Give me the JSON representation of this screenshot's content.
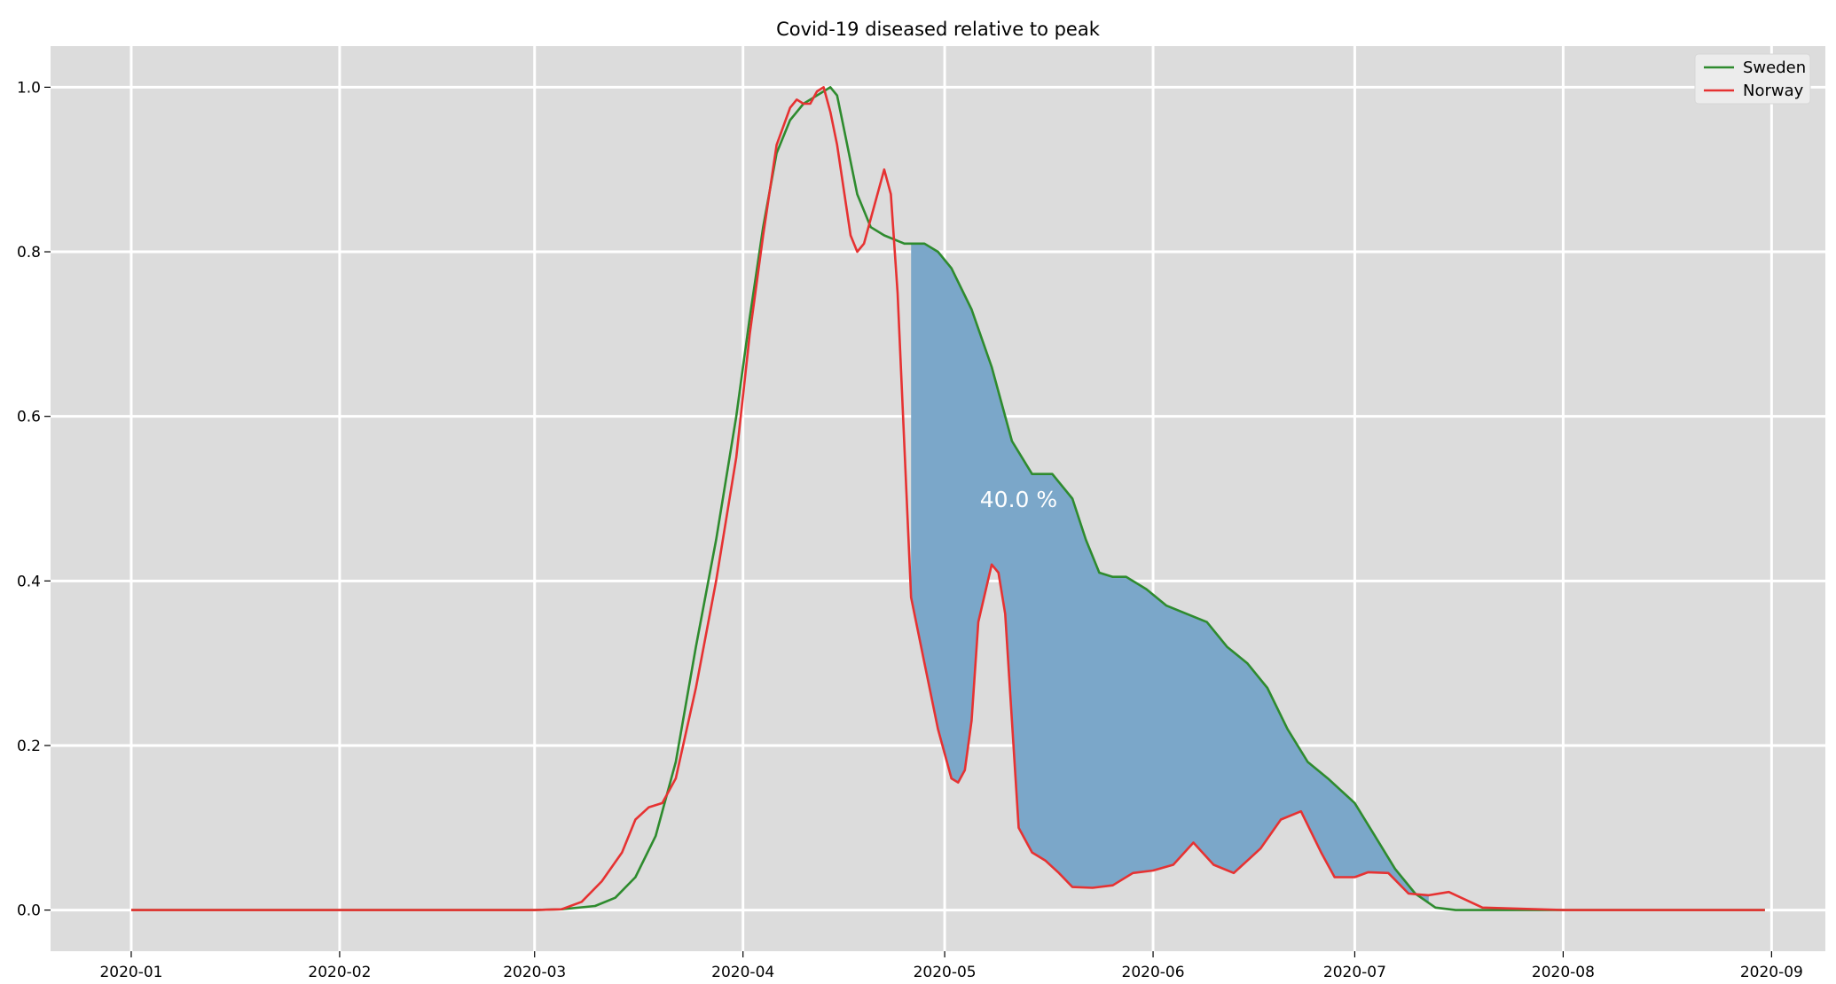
{
  "chart_data": {
    "type": "line",
    "title": "Covid-19 diseased relative to peak",
    "xlabel": "",
    "ylabel": "",
    "xlim": [
      "2019-12-20",
      "2020-09-09"
    ],
    "ylim": [
      -0.05,
      1.05
    ],
    "grid": true,
    "legend_position": "top-right",
    "x_ticks": [
      "2020-01",
      "2020-02",
      "2020-03",
      "2020-04",
      "2020-05",
      "2020-06",
      "2020-07",
      "2020-08",
      "2020-09"
    ],
    "y_ticks": [
      "0.0",
      "0.2",
      "0.4",
      "0.6",
      "0.8",
      "1.0"
    ],
    "annotation": {
      "text": "40.0 %",
      "x": "2020-05-12",
      "y": 0.49
    },
    "fill_between": {
      "from": "2020-04-26",
      "to": "2020-07-12",
      "color": "#7ba7c9"
    },
    "series": [
      {
        "name": "Sweden",
        "color": "#2e8b2e",
        "x": [
          "2020-01-01",
          "2020-03-01",
          "2020-03-05",
          "2020-03-10",
          "2020-03-13",
          "2020-03-16",
          "2020-03-19",
          "2020-03-22",
          "2020-03-25",
          "2020-03-28",
          "2020-03-31",
          "2020-04-02",
          "2020-04-04",
          "2020-04-06",
          "2020-04-08",
          "2020-04-10",
          "2020-04-12",
          "2020-04-14",
          "2020-04-15",
          "2020-04-16",
          "2020-04-18",
          "2020-04-20",
          "2020-04-22",
          "2020-04-25",
          "2020-04-28",
          "2020-04-30",
          "2020-05-02",
          "2020-05-05",
          "2020-05-08",
          "2020-05-11",
          "2020-05-14",
          "2020-05-17",
          "2020-05-20",
          "2020-05-22",
          "2020-05-24",
          "2020-05-26",
          "2020-05-28",
          "2020-05-31",
          "2020-06-03",
          "2020-06-06",
          "2020-06-09",
          "2020-06-12",
          "2020-06-15",
          "2020-06-18",
          "2020-06-21",
          "2020-06-24",
          "2020-06-27",
          "2020-07-01",
          "2020-07-04",
          "2020-07-07",
          "2020-07-10",
          "2020-07-13",
          "2020-07-16",
          "2020-07-20",
          "2020-08-01",
          "2020-08-31"
        ],
        "y": [
          0,
          0,
          0.001,
          0.005,
          0.015,
          0.04,
          0.09,
          0.18,
          0.32,
          0.45,
          0.6,
          0.72,
          0.83,
          0.92,
          0.96,
          0.98,
          0.99,
          1.0,
          0.99,
          0.95,
          0.87,
          0.83,
          0.82,
          0.81,
          0.81,
          0.8,
          0.78,
          0.73,
          0.66,
          0.57,
          0.53,
          0.53,
          0.5,
          0.45,
          0.41,
          0.405,
          0.405,
          0.39,
          0.37,
          0.36,
          0.35,
          0.32,
          0.3,
          0.27,
          0.22,
          0.18,
          0.16,
          0.13,
          0.09,
          0.05,
          0.02,
          0.003,
          0,
          0,
          0,
          0
        ]
      },
      {
        "name": "Norway",
        "color": "#e63232",
        "x": [
          "2020-01-01",
          "2020-03-01",
          "2020-03-05",
          "2020-03-08",
          "2020-03-11",
          "2020-03-14",
          "2020-03-16",
          "2020-03-18",
          "2020-03-20",
          "2020-03-22",
          "2020-03-25",
          "2020-03-28",
          "2020-03-31",
          "2020-04-02",
          "2020-04-04",
          "2020-04-06",
          "2020-04-08",
          "2020-04-09",
          "2020-04-10",
          "2020-04-11",
          "2020-04-12",
          "2020-04-13",
          "2020-04-14",
          "2020-04-15",
          "2020-04-17",
          "2020-04-18",
          "2020-04-19",
          "2020-04-20",
          "2020-04-22",
          "2020-04-23",
          "2020-04-24",
          "2020-04-26",
          "2020-04-28",
          "2020-04-30",
          "2020-05-02",
          "2020-05-03",
          "2020-05-04",
          "2020-05-05",
          "2020-05-06",
          "2020-05-08",
          "2020-05-09",
          "2020-05-10",
          "2020-05-12",
          "2020-05-14",
          "2020-05-16",
          "2020-05-18",
          "2020-05-20",
          "2020-05-23",
          "2020-05-26",
          "2020-05-29",
          "2020-06-01",
          "2020-06-04",
          "2020-06-07",
          "2020-06-10",
          "2020-06-13",
          "2020-06-15",
          "2020-06-17",
          "2020-06-20",
          "2020-06-23",
          "2020-06-26",
          "2020-06-28",
          "2020-07-01",
          "2020-07-03",
          "2020-07-06",
          "2020-07-09",
          "2020-07-12",
          "2020-07-15",
          "2020-07-20",
          "2020-08-01",
          "2020-08-31"
        ],
        "y": [
          0,
          0,
          0.001,
          0.01,
          0.035,
          0.07,
          0.11,
          0.125,
          0.13,
          0.16,
          0.27,
          0.4,
          0.55,
          0.7,
          0.82,
          0.93,
          0.975,
          0.985,
          0.98,
          0.98,
          0.995,
          1.0,
          0.97,
          0.93,
          0.82,
          0.8,
          0.81,
          0.84,
          0.9,
          0.87,
          0.75,
          0.38,
          0.3,
          0.22,
          0.16,
          0.155,
          0.17,
          0.23,
          0.35,
          0.42,
          0.41,
          0.36,
          0.1,
          0.07,
          0.06,
          0.045,
          0.028,
          0.027,
          0.03,
          0.045,
          0.048,
          0.055,
          0.082,
          0.055,
          0.045,
          0.06,
          0.075,
          0.11,
          0.12,
          0.07,
          0.04,
          0.04,
          0.046,
          0.045,
          0.02,
          0.018,
          0.022,
          0.003,
          0,
          0
        ]
      }
    ]
  }
}
